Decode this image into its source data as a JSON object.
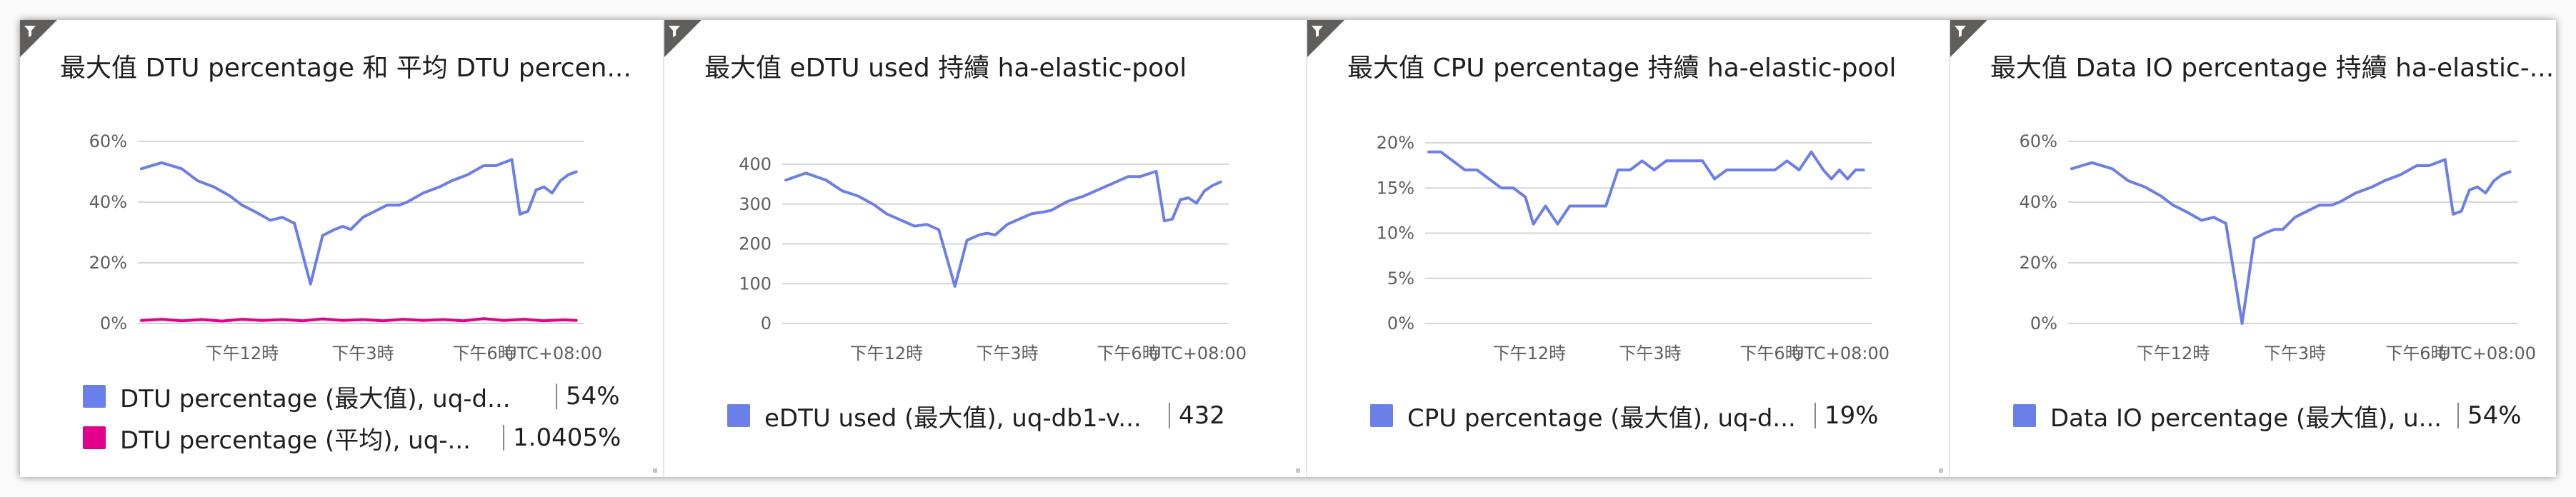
{
  "tiles": [
    {
      "title": "最大值 DTU percentage 和 平均 DTU percen...",
      "timezone": "UTC+08:00",
      "x_ticks": [
        "下午12時",
        "下午3時",
        "下午6時"
      ],
      "y_ticks": [
        "60%",
        "40%",
        "20%",
        "0%"
      ],
      "legend": [
        {
          "name": "DTU percentage (最大值), uq-d...",
          "value": "54%",
          "color": "#6b7fe8"
        },
        {
          "name": "DTU percentage (平均), uq-...",
          "value": "1.0405%",
          "color": "#e3008c"
        }
      ]
    },
    {
      "title": "最大值 eDTU used 持續 ha-elastic-pool",
      "timezone": "UTC+08:00",
      "x_ticks": [
        "下午12時",
        "下午3時",
        "下午6時"
      ],
      "y_ticks": [
        "400",
        "300",
        "200",
        "100",
        "0"
      ],
      "legend": [
        {
          "name": "eDTU used (最大值), uq-db1-v...",
          "value": "432",
          "color": "#6b7fe8"
        }
      ]
    },
    {
      "title": "最大值 CPU percentage 持續 ha-elastic-pool",
      "timezone": "UTC+08:00",
      "x_ticks": [
        "下午12時",
        "下午3時",
        "下午6時"
      ],
      "y_ticks": [
        "20%",
        "15%",
        "10%",
        "5%",
        "0%"
      ],
      "legend": [
        {
          "name": "CPU percentage (最大值), uq-d...",
          "value": "19%",
          "color": "#6b7fe8"
        }
      ]
    },
    {
      "title": "最大值 Data IO percentage 持續 ha-elastic-...",
      "timezone": "UTC+08:00",
      "x_ticks": [
        "下午12時",
        "下午3時",
        "下午6時"
      ],
      "y_ticks": [
        "60%",
        "40%",
        "20%",
        "0%"
      ],
      "legend": [
        {
          "name": "Data IO percentage (最大值), u...",
          "value": "54%",
          "color": "#6b7fe8"
        }
      ]
    }
  ],
  "chart_data": [
    {
      "type": "line",
      "title": "最大值 DTU percentage 和 平均 DTU percen...",
      "xlabel": "",
      "ylabel": "",
      "y_unit": "%",
      "ylim": [
        0,
        60
      ],
      "x_ticks": [
        "下午12時",
        "下午3時",
        "下午6時"
      ],
      "grid": true,
      "legend_position": "bottom",
      "x_range_hours": [
        9.5,
        20.5
      ],
      "series": [
        {
          "name": "DTU percentage (最大值), uq-d...",
          "color": "#6b7fe8",
          "x": [
            9.5,
            10,
            10.5,
            10.9,
            11.3,
            11.7,
            12,
            12.3,
            12.7,
            13,
            13.3,
            13.7,
            14,
            14.3,
            14.5,
            14.7,
            15,
            15.3,
            15.6,
            15.9,
            16.1,
            16.5,
            16.9,
            17.2,
            17.6,
            18,
            18.3,
            18.7,
            18.9,
            19.1,
            19.3,
            19.5,
            19.7,
            19.9,
            20.1,
            20.3
          ],
          "y": [
            51,
            53,
            51,
            47,
            45,
            42,
            39,
            37,
            34,
            35,
            33,
            13,
            29,
            31,
            32,
            31,
            35,
            37,
            39,
            39,
            40,
            43,
            45,
            47,
            49,
            52,
            52,
            54,
            36,
            37,
            44,
            45,
            43,
            47,
            49,
            50
          ]
        },
        {
          "name": "DTU percentage (平均), uq-...",
          "color": "#e3008c",
          "x": [
            9.5,
            10,
            10.5,
            11,
            11.5,
            12,
            12.5,
            13,
            13.5,
            14,
            14.5,
            15,
            15.5,
            16,
            16.5,
            17,
            17.5,
            18,
            18.5,
            19,
            19.5,
            20,
            20.3
          ],
          "y": [
            1.0,
            1.4,
            0.9,
            1.3,
            0.8,
            1.4,
            1.0,
            1.3,
            0.9,
            1.5,
            1.0,
            1.3,
            0.9,
            1.4,
            1.0,
            1.3,
            0.9,
            1.6,
            1.0,
            1.4,
            0.9,
            1.2,
            1.0
          ]
        }
      ]
    },
    {
      "type": "line",
      "title": "最大值 eDTU used 持續 ha-elastic-pool",
      "xlabel": "",
      "ylabel": "",
      "ylim": [
        0,
        450
      ],
      "x_ticks": [
        "下午12時",
        "下午3時",
        "下午6時"
      ],
      "grid": true,
      "legend_position": "bottom",
      "x_range_hours": [
        9.5,
        20.5
      ],
      "series": [
        {
          "name": "eDTU used (最大值), uq-db1-v...",
          "color": "#6b7fe8",
          "x": [
            9.5,
            10,
            10.5,
            10.9,
            11.3,
            11.7,
            12,
            12.3,
            12.7,
            13,
            13.3,
            13.7,
            14,
            14.3,
            14.5,
            14.7,
            15,
            15.3,
            15.6,
            15.9,
            16.1,
            16.5,
            16.9,
            17.2,
            17.6,
            18,
            18.3,
            18.7,
            18.9,
            19.1,
            19.3,
            19.5,
            19.7,
            19.9,
            20.1,
            20.3
          ],
          "y": [
            405,
            425,
            405,
            375,
            360,
            335,
            310,
            295,
            275,
            280,
            265,
            105,
            235,
            250,
            255,
            250,
            280,
            295,
            310,
            315,
            320,
            345,
            360,
            375,
            395,
            415,
            415,
            430,
            290,
            295,
            350,
            355,
            340,
            375,
            390,
            400
          ]
        }
      ]
    },
    {
      "type": "line",
      "title": "最大值 CPU percentage 持續 ha-elastic-pool",
      "xlabel": "",
      "ylabel": "",
      "y_unit": "%",
      "ylim": [
        0,
        20
      ],
      "x_ticks": [
        "下午12時",
        "下午3時",
        "下午6時"
      ],
      "grid": true,
      "legend_position": "bottom",
      "x_range_hours": [
        9.5,
        20.5
      ],
      "series": [
        {
          "name": "CPU percentage (最大值), uq-d...",
          "color": "#6b7fe8",
          "x": [
            9.5,
            9.8,
            10.1,
            10.4,
            10.7,
            11,
            11.3,
            11.6,
            11.9,
            12.1,
            12.4,
            12.7,
            13,
            13.3,
            13.6,
            13.9,
            14.2,
            14.5,
            14.8,
            15.1,
            15.4,
            15.7,
            16,
            16.3,
            16.6,
            16.9,
            17.2,
            17.5,
            17.8,
            18.1,
            18.4,
            18.7,
            19,
            19.3,
            19.5,
            19.7,
            19.9,
            20.1,
            20.3
          ],
          "y": [
            19,
            19,
            18,
            17,
            17,
            16,
            15,
            15,
            14,
            11,
            13,
            11,
            13,
            13,
            13,
            13,
            17,
            17,
            18,
            17,
            18,
            18,
            18,
            18,
            16,
            17,
            17,
            17,
            17,
            17,
            18,
            17,
            19,
            17,
            16,
            17,
            16,
            17,
            17
          ]
        }
      ]
    },
    {
      "type": "line",
      "title": "最大值 Data IO percentage 持續 ha-elastic-...",
      "xlabel": "",
      "ylabel": "",
      "y_unit": "%",
      "ylim": [
        0,
        60
      ],
      "x_ticks": [
        "下午12時",
        "下午3時",
        "下午6時"
      ],
      "grid": true,
      "legend_position": "bottom",
      "x_range_hours": [
        9.5,
        20.5
      ],
      "series": [
        {
          "name": "Data IO percentage (最大值), u...",
          "color": "#6b7fe8",
          "x": [
            9.5,
            10,
            10.5,
            10.9,
            11.3,
            11.7,
            12,
            12.3,
            12.7,
            13,
            13.3,
            13.7,
            14,
            14.3,
            14.5,
            14.7,
            15,
            15.3,
            15.6,
            15.9,
            16.1,
            16.5,
            16.9,
            17.2,
            17.6,
            18,
            18.3,
            18.7,
            18.9,
            19.1,
            19.3,
            19.5,
            19.7,
            19.9,
            20.1,
            20.3
          ],
          "y": [
            51,
            53,
            51,
            47,
            45,
            42,
            39,
            37,
            34,
            35,
            33,
            0,
            28,
            30,
            31,
            31,
            35,
            37,
            39,
            39,
            40,
            43,
            45,
            47,
            49,
            52,
            52,
            54,
            36,
            37,
            44,
            45,
            43,
            47,
            49,
            50
          ]
        }
      ]
    }
  ]
}
